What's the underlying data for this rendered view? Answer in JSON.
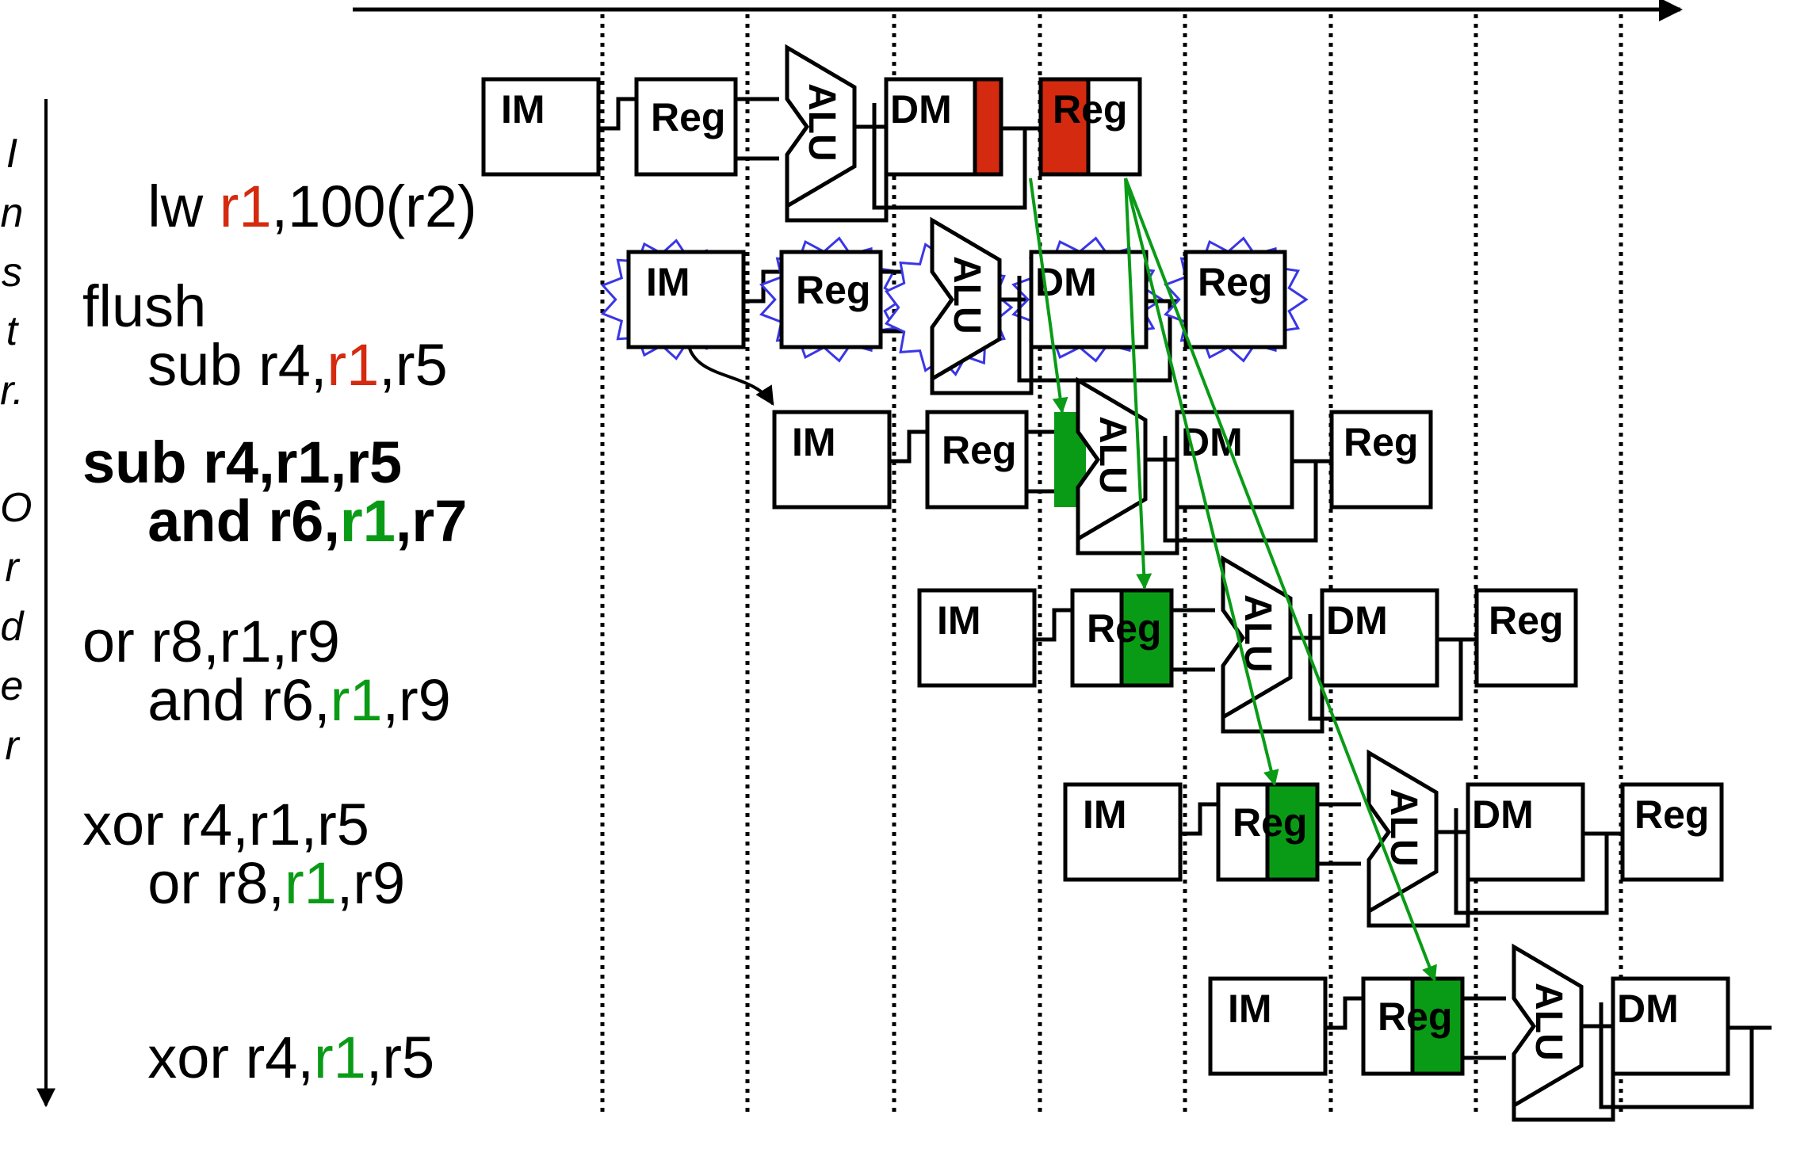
{
  "axis_label": [
    "I",
    "n",
    "s",
    "t",
    "r.",
    "O",
    "r",
    "d",
    "e",
    "r"
  ],
  "stages": {
    "im": "IM",
    "reg": "Reg",
    "alu": "ALU",
    "dm": "DM"
  },
  "colors": {
    "red": "#d42a0f",
    "green": "#0a9b16",
    "flush_star": "#3a36e6"
  },
  "instructions": [
    {
      "main": {
        "pre": "lw ",
        "reg": "r1",
        "post": ",100(r2)",
        "reg_color": "red"
      }
    },
    {
      "main": {
        "pre": "sub r4,",
        "reg": "r1",
        "post": ",r5",
        "reg_color": "red"
      },
      "overlay": {
        "text": "flush"
      }
    },
    {
      "main": {
        "pre": "and r6,",
        "reg": "r1",
        "post": ",r7",
        "reg_color": "green",
        "bold": true
      },
      "overlay": {
        "text": "sub r4,r1,r5"
      }
    },
    {
      "main": {
        "pre": "and r6,",
        "reg": "r1",
        "post": ",r9",
        "reg_color": "green"
      },
      "overlay": {
        "text": "or r8,r1,r9"
      }
    },
    {
      "main": {
        "pre": "or r8,",
        "reg": "r1",
        "post": ",r9",
        "reg_color": "green"
      },
      "overlay": {
        "text": "xor r4,r1,r5"
      }
    },
    {
      "main": {
        "pre": "xor r4,",
        "reg": "r1",
        "post": ",r5",
        "reg_color": "green"
      }
    }
  ]
}
